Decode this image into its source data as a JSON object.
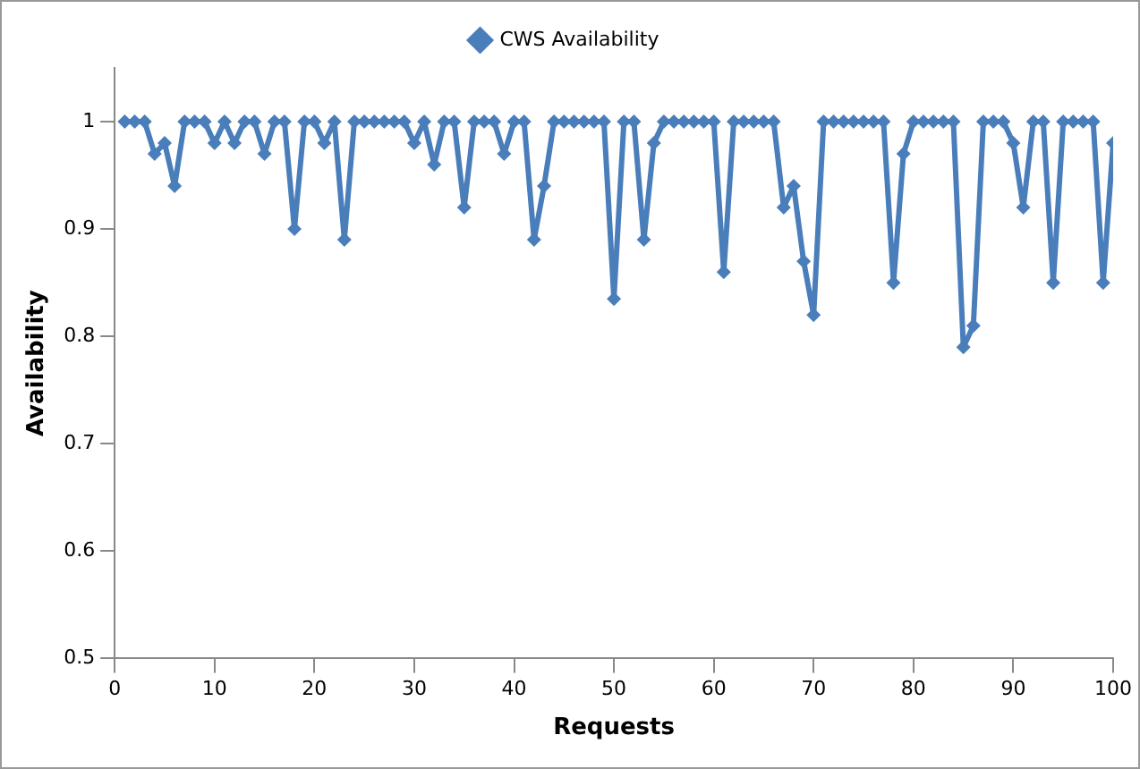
{
  "chart_data": {
    "type": "line",
    "xlabel": "Requests",
    "ylabel": "Availability",
    "x": [
      1,
      2,
      3,
      4,
      5,
      6,
      7,
      8,
      9,
      10,
      11,
      12,
      13,
      14,
      15,
      16,
      17,
      18,
      19,
      20,
      21,
      22,
      23,
      24,
      25,
      26,
      27,
      28,
      29,
      30,
      31,
      32,
      33,
      34,
      35,
      36,
      37,
      38,
      39,
      40,
      41,
      42,
      43,
      44,
      45,
      46,
      47,
      48,
      49,
      50,
      51,
      52,
      53,
      54,
      55,
      56,
      57,
      58,
      59,
      60,
      61,
      62,
      63,
      64,
      65,
      66,
      67,
      68,
      69,
      70,
      71,
      72,
      73,
      74,
      75,
      76,
      77,
      78,
      79,
      80,
      81,
      82,
      83,
      84,
      85,
      86,
      87,
      88,
      89,
      90,
      91,
      92,
      93,
      94,
      95,
      96,
      97,
      98,
      99,
      100
    ],
    "series": [
      {
        "name": "CWS Availability",
        "color": "#4a7ebb",
        "values": [
          1,
          1,
          1,
          0.97,
          0.98,
          0.94,
          1,
          1,
          1,
          0.98,
          1,
          0.98,
          1,
          1,
          0.97,
          1,
          1,
          0.9,
          1,
          1,
          0.98,
          1,
          0.89,
          1,
          1,
          1,
          1,
          1,
          1,
          0.98,
          1,
          0.96,
          1,
          1,
          0.92,
          1,
          1,
          1,
          0.97,
          1,
          1,
          0.89,
          0.94,
          1,
          1,
          1,
          1,
          1,
          1,
          0.835,
          1,
          1,
          0.89,
          0.98,
          1,
          1,
          1,
          1,
          1,
          1,
          0.86,
          1,
          1,
          1,
          1,
          1,
          0.92,
          0.94,
          0.87,
          0.82,
          1,
          1,
          1,
          1,
          1,
          1,
          1,
          0.85,
          0.97,
          1,
          1,
          1,
          1,
          1,
          0.79,
          0.81,
          1,
          1,
          1,
          0.98,
          0.92,
          1,
          1,
          0.85,
          1,
          1,
          1,
          1,
          0.85,
          0.98
        ]
      }
    ],
    "xlim": [
      0,
      100
    ],
    "xticks": [
      0,
      10,
      20,
      30,
      40,
      50,
      60,
      70,
      80,
      90,
      100
    ],
    "ylim": [
      0.5,
      1.05
    ],
    "yticks": [
      0.5,
      0.6,
      0.7,
      0.8,
      0.9,
      1
    ],
    "grid": false,
    "legend": "top",
    "marker": "diamond",
    "line_style": "solid"
  }
}
